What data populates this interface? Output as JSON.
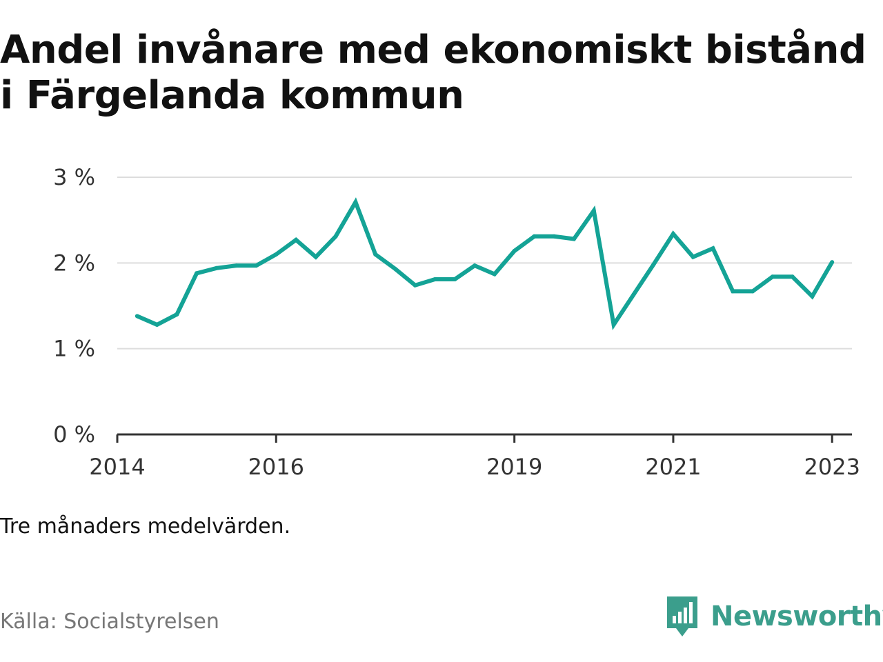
{
  "title": "Andel invånare med ekonomiskt bistånd i Färgelanda kommun",
  "note": "Tre månaders medelvärden.",
  "source": "Källa: Socialstyrelsen",
  "brand": {
    "name": "Newsworthy",
    "icon": "newsworthy-logo-icon",
    "color": "#3b9e8c"
  },
  "colors": {
    "line": "#14a396",
    "grid": "#dddddd",
    "axis": "#333333"
  },
  "chart_data": {
    "type": "line",
    "title": "Andel invånare med ekonomiskt bistånd i Färgelanda kommun",
    "xlabel": "",
    "ylabel": "",
    "ylim": [
      0,
      3
    ],
    "xlim": [
      2014.0,
      2023.25
    ],
    "y_ticks": [
      {
        "value": 0,
        "label": "0 %"
      },
      {
        "value": 1,
        "label": "1 %"
      },
      {
        "value": 2,
        "label": "2 %"
      },
      {
        "value": 3,
        "label": "3 %"
      }
    ],
    "x_ticks": [
      {
        "value": 2014.0,
        "label": "2014"
      },
      {
        "value": 2016.0,
        "label": "2016"
      },
      {
        "value": 2019.0,
        "label": "2019"
      },
      {
        "value": 2021.0,
        "label": "2021"
      },
      {
        "value": 2023.0,
        "label": "2023"
      }
    ],
    "grid": true,
    "legend": "none",
    "series": [
      {
        "values": [
          {
            "x": 2014.25,
            "y": 1.38
          },
          {
            "x": 2014.5,
            "y": 1.28
          },
          {
            "x": 2014.75,
            "y": 1.4
          },
          {
            "x": 2015.0,
            "y": 1.88
          },
          {
            "x": 2015.25,
            "y": 1.94
          },
          {
            "x": 2015.5,
            "y": 1.97
          },
          {
            "x": 2015.75,
            "y": 1.97
          },
          {
            "x": 2016.0,
            "y": 2.1
          },
          {
            "x": 2016.25,
            "y": 2.27
          },
          {
            "x": 2016.5,
            "y": 2.07
          },
          {
            "x": 2016.75,
            "y": 2.31
          },
          {
            "x": 2017.0,
            "y": 2.71
          },
          {
            "x": 2017.25,
            "y": 2.1
          },
          {
            "x": 2017.5,
            "y": 1.93
          },
          {
            "x": 2017.75,
            "y": 1.74
          },
          {
            "x": 2018.0,
            "y": 1.81
          },
          {
            "x": 2018.25,
            "y": 1.81
          },
          {
            "x": 2018.5,
            "y": 1.97
          },
          {
            "x": 2018.75,
            "y": 1.87
          },
          {
            "x": 2019.0,
            "y": 2.14
          },
          {
            "x": 2019.25,
            "y": 2.31
          },
          {
            "x": 2019.5,
            "y": 2.31
          },
          {
            "x": 2019.75,
            "y": 2.28
          },
          {
            "x": 2020.0,
            "y": 2.61
          },
          {
            "x": 2020.25,
            "y": 1.28
          },
          {
            "x": 2020.5,
            "y": 1.63
          },
          {
            "x": 2020.75,
            "y": 1.98
          },
          {
            "x": 2021.0,
            "y": 2.34
          },
          {
            "x": 2021.25,
            "y": 2.07
          },
          {
            "x": 2021.5,
            "y": 2.17
          },
          {
            "x": 2021.75,
            "y": 1.67
          },
          {
            "x": 2022.0,
            "y": 1.67
          },
          {
            "x": 2022.25,
            "y": 1.84
          },
          {
            "x": 2022.5,
            "y": 1.84
          },
          {
            "x": 2022.75,
            "y": 1.61
          },
          {
            "x": 2023.0,
            "y": 2.01
          }
        ]
      }
    ]
  }
}
